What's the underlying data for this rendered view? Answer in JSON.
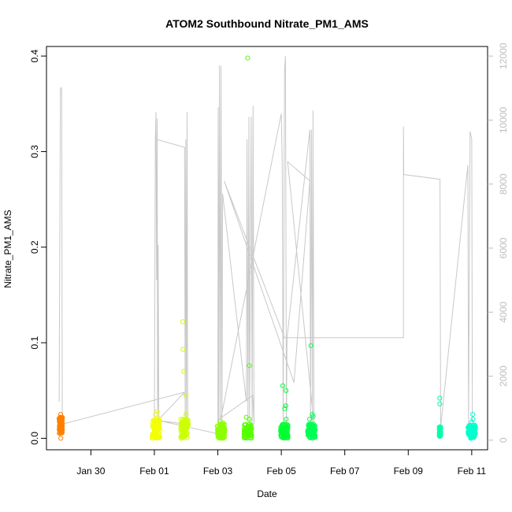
{
  "chart_data": {
    "type": "scatter",
    "title": "ATOM2 Southbound Nitrate_PM1_AMS",
    "xlabel": "Date",
    "ylabel": "Nitrate_PM1_AMS",
    "x_ticks": [
      "Jan 30",
      "Feb 01",
      "Feb 03",
      "Feb 05",
      "Feb 07",
      "Feb 09",
      "Feb 11"
    ],
    "x_tick_days": [
      30,
      32,
      34,
      36,
      38,
      40,
      42
    ],
    "xlim_days": [
      28.6,
      42.5
    ],
    "ylim": [
      -0.012,
      0.41
    ],
    "y_ticks": [
      0.0,
      0.1,
      0.2,
      0.3,
      0.4
    ],
    "y2_label": "",
    "y2_ticks": [
      0,
      2000,
      4000,
      6000,
      8000,
      10000,
      12000
    ],
    "y2lim": [
      -300,
      12300
    ],
    "grid": false,
    "legend": "none",
    "scatter_groups": [
      {
        "center_day": 29.05,
        "spread": 0.05,
        "color": "#ff7f00",
        "base": [
          0.005,
          0.022
        ],
        "extra": [
          0.025,
          0.022,
          0.02,
          0.0
        ]
      },
      {
        "center_day": 32.05,
        "spread": 0.12,
        "color": "#f2ff00",
        "base": [
          0.0,
          0.02
        ],
        "extra": [
          0.028,
          0.025,
          0.022
        ]
      },
      {
        "center_day": 32.95,
        "spread": 0.12,
        "color": "#ccff00",
        "base": [
          0.0,
          0.02
        ],
        "extra": [
          0.122,
          0.093,
          0.07,
          0.045,
          0.025
        ]
      },
      {
        "center_day": 34.1,
        "spread": 0.12,
        "color": "#8cff00",
        "base": [
          0.0,
          0.015
        ],
        "extra": [
          0.018,
          0.016
        ]
      },
      {
        "center_day": 34.95,
        "spread": 0.12,
        "color": "#55ff00",
        "base": [
          0.0,
          0.015
        ],
        "extra": [
          0.398,
          0.076,
          0.022,
          0.02
        ]
      },
      {
        "center_day": 36.1,
        "spread": 0.12,
        "color": "#00ff33",
        "base": [
          0.0,
          0.015
        ],
        "extra": [
          0.055,
          0.05,
          0.034,
          0.031,
          0.02
        ]
      },
      {
        "center_day": 36.95,
        "spread": 0.12,
        "color": "#00ff55",
        "base": [
          0.0,
          0.015
        ],
        "extra": [
          0.097,
          0.025,
          0.023,
          0.02
        ]
      },
      {
        "center_day": 41.0,
        "spread": 0.02,
        "color": "#00ffaa",
        "base": [
          0.002,
          0.012
        ],
        "extra": [
          0.042,
          0.036
        ]
      },
      {
        "center_day": 42.0,
        "spread": 0.12,
        "color": "#00ffcc",
        "base": [
          0.0,
          0.014
        ],
        "extra": [
          0.025,
          0.02,
          0.017
        ]
      }
    ],
    "secondary_line": {
      "color": "#c8c8c8",
      "axis": "right",
      "points": [
        [
          29.0,
          1200
        ],
        [
          29.04,
          11000
        ],
        [
          29.08,
          11000
        ],
        [
          29.1,
          500
        ],
        [
          32.95,
          1500
        ],
        [
          32.0,
          500
        ],
        [
          32.03,
          9400
        ],
        [
          32.05,
          10250
        ],
        [
          32.07,
          5000
        ],
        [
          32.09,
          10050
        ],
        [
          32.1,
          500
        ],
        [
          32.12,
          6100
        ],
        [
          32.14,
          600
        ],
        [
          32.05,
          9400
        ],
        [
          32.95,
          9150
        ],
        [
          32.97,
          500
        ],
        [
          32.99,
          9400
        ],
        [
          33.01,
          600
        ],
        [
          33.03,
          10250
        ],
        [
          33.05,
          500
        ],
        [
          32.2,
          600
        ],
        [
          34.0,
          200
        ],
        [
          34.01,
          10400
        ],
        [
          34.03,
          500
        ],
        [
          34.05,
          11700
        ],
        [
          34.08,
          500
        ],
        [
          34.1,
          11700
        ],
        [
          34.13,
          500
        ],
        [
          34.15,
          7700
        ],
        [
          34.9,
          1200
        ],
        [
          34.92,
          9400
        ],
        [
          34.95,
          500
        ],
        [
          34.98,
          10100
        ],
        [
          35.0,
          500
        ],
        [
          35.05,
          10100
        ],
        [
          35.08,
          500
        ],
        [
          35.11,
          10450
        ],
        [
          35.14,
          500
        ],
        [
          35.1,
          1400
        ],
        [
          34.1,
          700
        ],
        [
          36.0,
          10200
        ],
        [
          36.03,
          8700
        ],
        [
          36.06,
          500
        ],
        [
          36.1,
          11500
        ],
        [
          36.13,
          12000
        ],
        [
          36.16,
          500
        ],
        [
          36.18,
          3200
        ],
        [
          36.9,
          9700
        ],
        [
          36.92,
          500
        ],
        [
          36.95,
          9700
        ],
        [
          36.98,
          500
        ],
        [
          37.0,
          10300
        ],
        [
          37.03,
          500
        ],
        [
          36.2,
          8700
        ],
        [
          36.9,
          8100
        ],
        [
          36.4,
          1800
        ],
        [
          34.2,
          8100
        ],
        [
          36.1,
          3200
        ],
        [
          39.85,
          3200
        ],
        [
          39.85,
          9800
        ],
        [
          39.86,
          8300
        ],
        [
          41.0,
          8150
        ],
        [
          41.02,
          400
        ],
        [
          41.88,
          8600
        ],
        [
          41.9,
          500
        ],
        [
          41.95,
          9650
        ],
        [
          42.0,
          9400
        ],
        [
          42.02,
          500
        ]
      ]
    }
  }
}
